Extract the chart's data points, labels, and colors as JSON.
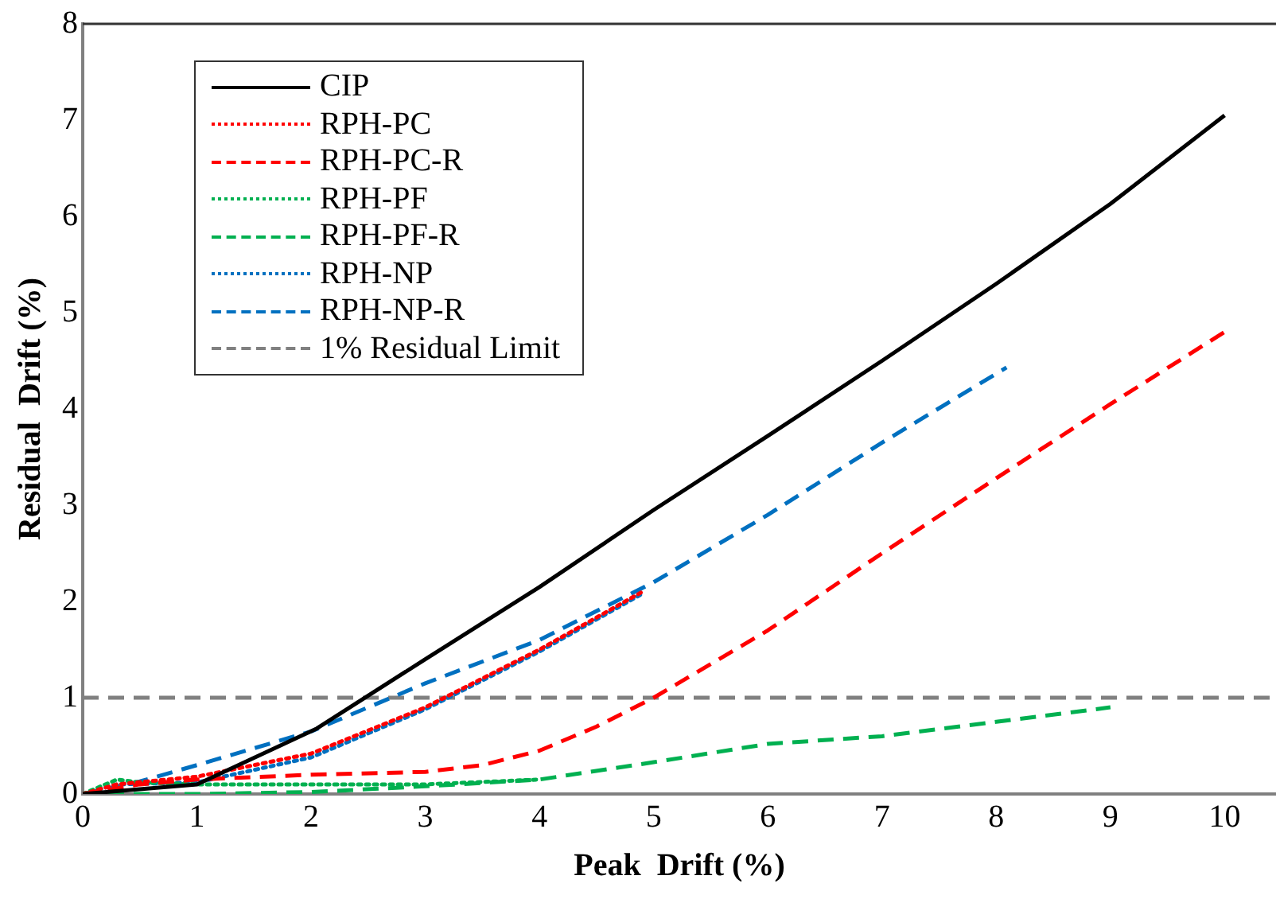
{
  "chart_data": {
    "type": "line",
    "xlabel": "Peak  Drift (%)",
    "ylabel": "Residual  Drift (%)",
    "xlim": [
      0,
      10.45
    ],
    "xticks": [
      0,
      1,
      2,
      3,
      4,
      5,
      6,
      7,
      8,
      9,
      10
    ],
    "ylim": [
      0,
      8
    ],
    "yticks": [
      0,
      1,
      2,
      3,
      4,
      5,
      6,
      7,
      8
    ],
    "grid": false,
    "legend": "top left",
    "marker": "none",
    "series": [
      {
        "name": "CIP",
        "color": "#000000",
        "line_style": "solid",
        "x": [
          0,
          1,
          2.05,
          3,
          4,
          5,
          6,
          7,
          8,
          9,
          10
        ],
        "values": [
          0,
          0.1,
          0.68,
          1.4,
          2.15,
          2.95,
          3.72,
          4.5,
          5.3,
          6.13,
          7.05
        ]
      },
      {
        "name": "RPH-PC",
        "color": "#ff0000",
        "line_style": "dotted",
        "x": [
          0,
          0.3,
          1,
          2,
          3,
          4,
          4.9
        ],
        "values": [
          0,
          0.1,
          0.18,
          0.42,
          0.9,
          1.5,
          2.1
        ]
      },
      {
        "name": "RPH-PC-R",
        "color": "#ff0000",
        "line_style": "dashed",
        "x": [
          0,
          0.5,
          1,
          2,
          3,
          3.5,
          4,
          4.5,
          5,
          6,
          7,
          8,
          9,
          10
        ],
        "values": [
          0,
          0.1,
          0.15,
          0.2,
          0.23,
          0.3,
          0.45,
          0.7,
          1.0,
          1.7,
          2.5,
          3.28,
          4.05,
          4.8
        ]
      },
      {
        "name": "RPH-PF",
        "color": "#00b050",
        "line_style": "dotted",
        "x": [
          0,
          0.3,
          0.5,
          1,
          2,
          3,
          4
        ],
        "values": [
          0,
          0.15,
          0.12,
          0.1,
          0.1,
          0.1,
          0.15
        ]
      },
      {
        "name": "RPH-PF-R",
        "color": "#00b050",
        "line_style": "dashed",
        "x": [
          0,
          1,
          2,
          3,
          4,
          5,
          6,
          7,
          8,
          9
        ],
        "values": [
          0,
          0,
          0.02,
          0.08,
          0.15,
          0.33,
          0.52,
          0.6,
          0.75,
          0.9
        ]
      },
      {
        "name": "RPH-NP",
        "color": "#0070c0",
        "line_style": "dotted",
        "x": [
          0,
          0.3,
          1,
          2,
          3,
          4,
          4.9
        ],
        "values": [
          0,
          0.1,
          0.12,
          0.38,
          0.88,
          1.48,
          2.08
        ]
      },
      {
        "name": "RPH-NP-R",
        "color": "#0070c0",
        "line_style": "dashed",
        "x": [
          0,
          0.5,
          1,
          2,
          3,
          4,
          5,
          6,
          7,
          8.09
        ],
        "values": [
          0,
          0.13,
          0.3,
          0.65,
          1.15,
          1.6,
          2.2,
          2.9,
          3.65,
          4.43
        ]
      }
    ],
    "ref_lines": [
      {
        "axis": "y",
        "value": 1,
        "label": "1% Residual Limit",
        "color": "#808080",
        "line_style": "dashed"
      }
    ]
  }
}
